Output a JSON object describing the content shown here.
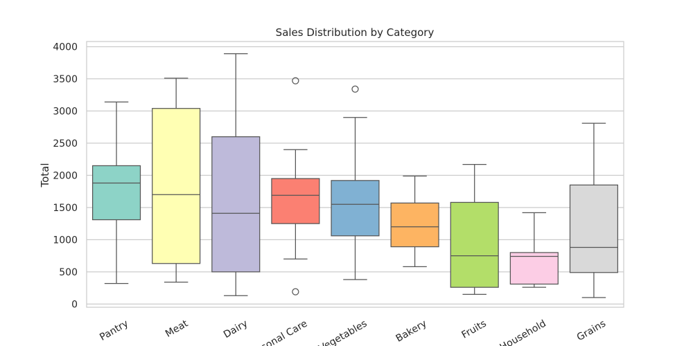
{
  "chart_data": {
    "type": "box",
    "title": "Sales Distribution by Category",
    "xlabel": "",
    "ylabel": "Total",
    "ylim": [
      -50,
      4080
    ],
    "yticks": [
      0,
      500,
      1000,
      1500,
      2000,
      2500,
      3000,
      3500,
      4000
    ],
    "grid": true,
    "categories": [
      "Pantry",
      "Meat",
      "Dairy",
      "Personal Care",
      "Vegetables",
      "Bakery",
      "Fruits",
      "Household",
      "Grains"
    ],
    "boxes": [
      {
        "category": "Pantry",
        "whisker_low": 320,
        "q1": 1310,
        "median": 1880,
        "q3": 2150,
        "whisker_high": 3140,
        "outliers": [],
        "color": "#8dd3c7"
      },
      {
        "category": "Meat",
        "whisker_low": 340,
        "q1": 630,
        "median": 1700,
        "q3": 3040,
        "whisker_high": 3510,
        "outliers": [],
        "color": "#ffffb3"
      },
      {
        "category": "Dairy",
        "whisker_low": 130,
        "q1": 500,
        "median": 1410,
        "q3": 2600,
        "whisker_high": 3890,
        "outliers": [],
        "color": "#bebada"
      },
      {
        "category": "Personal Care",
        "whisker_low": 700,
        "q1": 1250,
        "median": 1690,
        "q3": 1950,
        "whisker_high": 2400,
        "outliers": [
          3470,
          190
        ],
        "color": "#fb8072"
      },
      {
        "category": "Vegetables",
        "whisker_low": 380,
        "q1": 1060,
        "median": 1550,
        "q3": 1920,
        "whisker_high": 2900,
        "outliers": [
          3340
        ],
        "color": "#80b1d3"
      },
      {
        "category": "Bakery",
        "whisker_low": 580,
        "q1": 890,
        "median": 1200,
        "q3": 1570,
        "whisker_high": 1990,
        "outliers": [],
        "color": "#fdb462"
      },
      {
        "category": "Fruits",
        "whisker_low": 150,
        "q1": 260,
        "median": 750,
        "q3": 1580,
        "whisker_high": 2170,
        "outliers": [],
        "color": "#b3de69"
      },
      {
        "category": "Household",
        "whisker_low": 260,
        "q1": 310,
        "median": 740,
        "q3": 800,
        "whisker_high": 1420,
        "outliers": [],
        "color": "#fccde5"
      },
      {
        "category": "Grains",
        "whisker_low": 100,
        "q1": 490,
        "median": 880,
        "q3": 1850,
        "whisker_high": 2810,
        "outliers": [],
        "color": "#d9d9d9"
      }
    ]
  }
}
